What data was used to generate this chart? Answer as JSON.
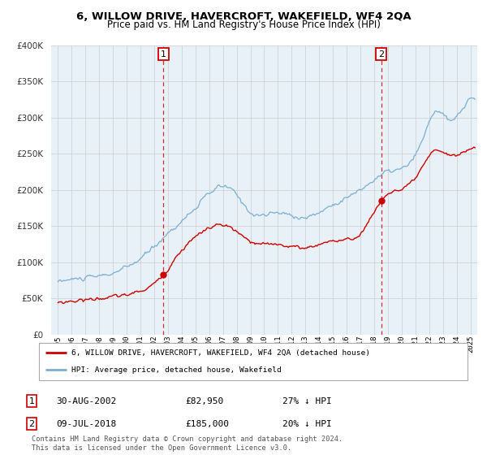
{
  "title": "6, WILLOW DRIVE, HAVERCROFT, WAKEFIELD, WF4 2QA",
  "subtitle": "Price paid vs. HM Land Registry's House Price Index (HPI)",
  "legend_line1": "6, WILLOW DRIVE, HAVERCROFT, WAKEFIELD, WF4 2QA (detached house)",
  "legend_line2": "HPI: Average price, detached house, Wakefield",
  "footer": "Contains HM Land Registry data © Crown copyright and database right 2024.\nThis data is licensed under the Open Government Licence v3.0.",
  "sale1_label": "1",
  "sale1_date": "30-AUG-2002",
  "sale1_price": "£82,950",
  "sale1_hpi": "27% ↓ HPI",
  "sale2_label": "2",
  "sale2_date": "09-JUL-2018",
  "sale2_price": "£185,000",
  "sale2_hpi": "20% ↓ HPI",
  "sale1_x": 2002.67,
  "sale1_y": 82950,
  "sale2_x": 2018.52,
  "sale2_y": 185000,
  "hpi_color": "#7bafd4",
  "property_color": "#cc0000",
  "vline_color": "#cc0000",
  "marker_box_color": "#cc0000",
  "grid_color": "#cccccc",
  "chart_bg": "#e8f0f8",
  "ylim": [
    0,
    400000
  ],
  "xlim": [
    1994.5,
    2025.5
  ],
  "title_fontsize": 9.5,
  "subtitle_fontsize": 8.5
}
